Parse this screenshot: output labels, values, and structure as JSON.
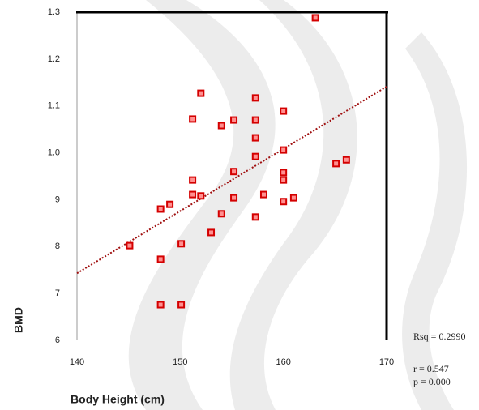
{
  "chart_data": {
    "type": "scatter",
    "x_label": "Body Height (cm)",
    "y_label": "BMD",
    "annotations": [
      "Rsq = 0.2990",
      "r = 0.547",
      "p = 0.000"
    ],
    "xlim": [
      140,
      170
    ],
    "xticks": [
      140,
      150,
      160,
      170
    ],
    "ylim": [
      0.6,
      1.3
    ],
    "yticks": [
      1.3,
      1.2,
      1.1,
      {
        "value": 1,
        "label": "1.0"
      },
      {
        "value": 0.9,
        "label": "9"
      },
      {
        "value": 0.8,
        "label": "8"
      },
      {
        "value": 0.7,
        "label": "7"
      },
      {
        "value": 0.6,
        "label": "6"
      }
    ],
    "color": "#d40000",
    "x": [
      163.1,
      152.0,
      151.2,
      154.0,
      155.2,
      157.3,
      157.3,
      160.0,
      157.3,
      157.3,
      155.2,
      160.0,
      160.0,
      160.0,
      165.1,
      166.1,
      151.2,
      151.2,
      152.0,
      155.2,
      158.1,
      161.0,
      160.0,
      149.0,
      148.1,
      154.0,
      157.3,
      153.0,
      150.1,
      145.1,
      148.1,
      148.1,
      150.1
    ],
    "values": [
      1.288,
      1.127,
      1.072,
      1.058,
      1.07,
      1.117,
      1.07,
      1.089,
      1.032,
      0.992,
      0.96,
      1.006,
      0.958,
      0.942,
      0.977,
      0.985,
      0.942,
      0.911,
      0.908,
      0.904,
      0.911,
      0.904,
      0.896,
      0.89,
      0.88,
      0.87,
      0.863,
      0.83,
      0.806,
      0.802,
      0.773,
      0.676,
      0.676
    ],
    "fit_line": {
      "x": [
        140,
        170
      ],
      "values": [
        0.743,
        1.141
      ],
      "color": "#a01010"
    }
  }
}
